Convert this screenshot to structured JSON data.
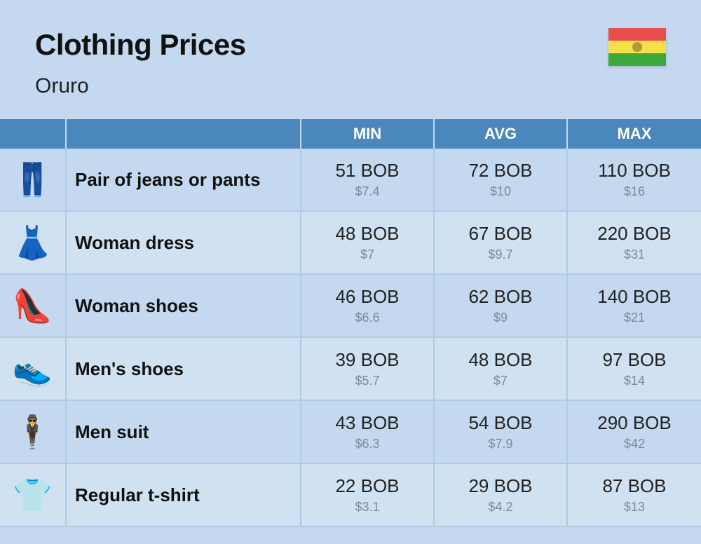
{
  "header": {
    "title": "Clothing Prices",
    "subtitle": "Oruro",
    "flag_colors": [
      "#e84c4c",
      "#f5e04a",
      "#3aa83a"
    ]
  },
  "columns": {
    "min": "MIN",
    "avg": "AVG",
    "max": "MAX"
  },
  "colors": {
    "header_bg": "#4a87bd",
    "header_text": "#ffffff",
    "row_even": "#d0e1f1",
    "row_odd": "#c4d9ef",
    "border": "#b0c9e4",
    "text_primary": "#111111",
    "text_secondary": "#7a8a9a"
  },
  "rows": [
    {
      "icon": "👖",
      "label": "Pair of jeans or pants",
      "min": {
        "primary": "51 BOB",
        "secondary": "$7.4"
      },
      "avg": {
        "primary": "72 BOB",
        "secondary": "$10"
      },
      "max": {
        "primary": "110 BOB",
        "secondary": "$16"
      }
    },
    {
      "icon": "👗",
      "label": "Woman dress",
      "min": {
        "primary": "48 BOB",
        "secondary": "$7"
      },
      "avg": {
        "primary": "67 BOB",
        "secondary": "$9.7"
      },
      "max": {
        "primary": "220 BOB",
        "secondary": "$31"
      }
    },
    {
      "icon": "👠",
      "label": "Woman shoes",
      "min": {
        "primary": "46 BOB",
        "secondary": "$6.6"
      },
      "avg": {
        "primary": "62 BOB",
        "secondary": "$9"
      },
      "max": {
        "primary": "140 BOB",
        "secondary": "$21"
      }
    },
    {
      "icon": "👟",
      "label": "Men's shoes",
      "min": {
        "primary": "39 BOB",
        "secondary": "$5.7"
      },
      "avg": {
        "primary": "48 BOB",
        "secondary": "$7"
      },
      "max": {
        "primary": "97 BOB",
        "secondary": "$14"
      }
    },
    {
      "icon": "🕴️",
      "label": "Men suit",
      "min": {
        "primary": "43 BOB",
        "secondary": "$6.3"
      },
      "avg": {
        "primary": "54 BOB",
        "secondary": "$7.9"
      },
      "max": {
        "primary": "290 BOB",
        "secondary": "$42"
      }
    },
    {
      "icon": "👕",
      "label": "Regular t-shirt",
      "min": {
        "primary": "22 BOB",
        "secondary": "$3.1"
      },
      "avg": {
        "primary": "29 BOB",
        "secondary": "$4.2"
      },
      "max": {
        "primary": "87 BOB",
        "secondary": "$13"
      }
    }
  ]
}
